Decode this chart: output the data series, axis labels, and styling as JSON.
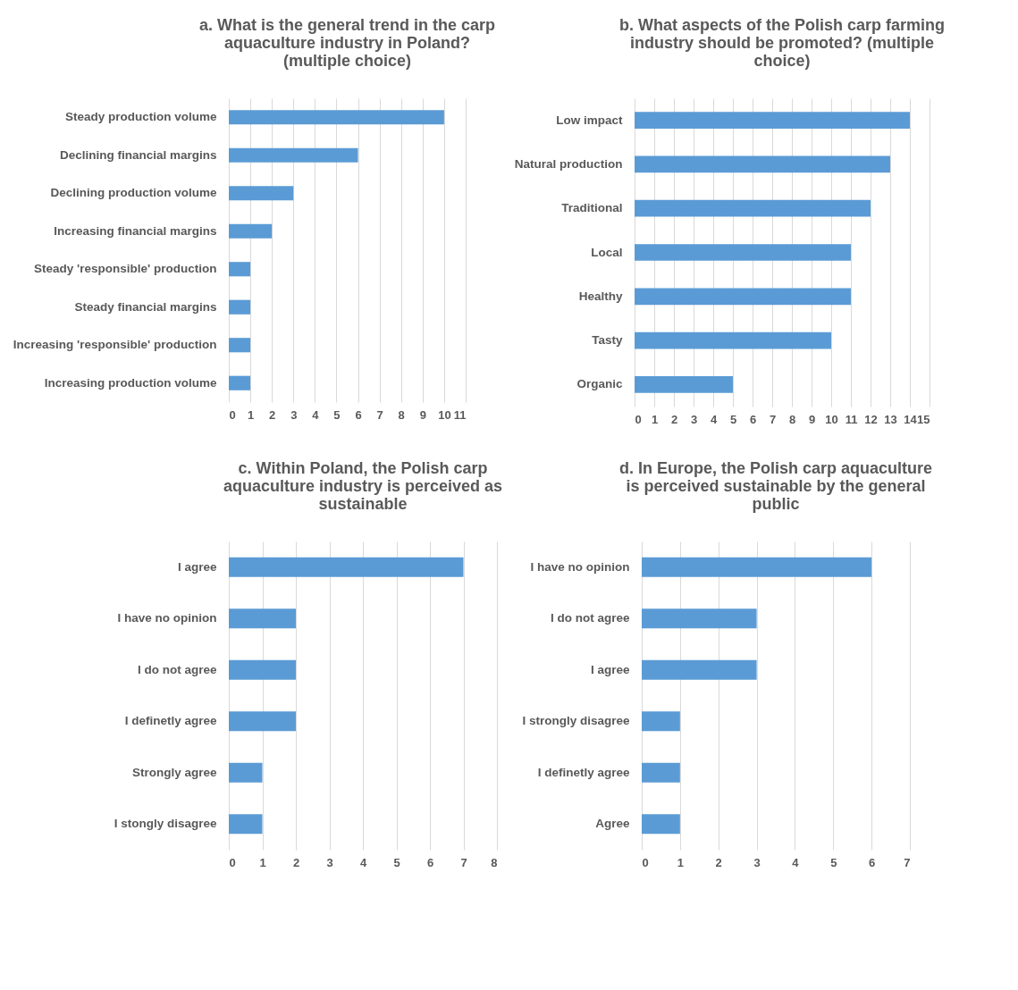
{
  "chart_data": [
    {
      "type": "bar",
      "orientation": "horizontal",
      "title": "a. What is the general trend in the carp aquaculture industry in Poland? (multiple choice)",
      "categories": [
        "Steady production volume",
        "Declining financial margins",
        "Declining production volume",
        "Increasing financial margins",
        "Steady 'responsible' production",
        "Steady financial margins",
        "Increasing 'responsible' production",
        "Increasing production volume"
      ],
      "values": [
        10,
        6,
        3,
        2,
        1,
        1,
        1,
        1
      ],
      "color": "#5b9bd5",
      "xlim": [
        0,
        11
      ],
      "xticks": [
        0,
        1,
        2,
        3,
        4,
        5,
        6,
        7,
        8,
        9,
        10,
        11
      ],
      "grid": "x"
    },
    {
      "type": "bar",
      "orientation": "horizontal",
      "title": "b. What aspects of the Polish carp farming industry should be promoted? (multiple choice)",
      "categories": [
        "Low impact",
        "Natural production",
        "Traditional",
        "Local",
        "Healthy",
        "Tasty",
        "Organic"
      ],
      "values": [
        14,
        13,
        12,
        11,
        11,
        10,
        5
      ],
      "color": "#5b9bd5",
      "xlim": [
        0,
        15
      ],
      "xticks": [
        0,
        1,
        2,
        3,
        4,
        5,
        6,
        7,
        8,
        9,
        10,
        11,
        12,
        13,
        14,
        15
      ],
      "grid": "x"
    },
    {
      "type": "bar",
      "orientation": "horizontal",
      "title": "c. Within Poland, the Polish carp aquaculture industry is perceived as sustainable",
      "categories": [
        "I agree",
        "I have no opinion",
        "I do not agree",
        "I definetly agree",
        "Strongly agree",
        "I stongly disagree"
      ],
      "values": [
        7,
        2,
        2,
        2,
        1,
        1
      ],
      "color": "#5b9bd5",
      "xlim": [
        0,
        8
      ],
      "xticks": [
        0,
        1,
        2,
        3,
        4,
        5,
        6,
        7,
        8
      ],
      "grid": "x"
    },
    {
      "type": "bar",
      "orientation": "horizontal",
      "title": "d. In Europe, the Polish carp aquaculture is perceived sustainable by the general public",
      "categories": [
        "I have no opinion",
        "I do not agree",
        "I agree",
        "I strongly disagree",
        "I definetly agree",
        "Agree"
      ],
      "values": [
        6,
        3,
        3,
        1,
        1,
        1
      ],
      "color": "#5b9bd5",
      "xlim": [
        0,
        7
      ],
      "xticks": [
        0,
        1,
        2,
        3,
        4,
        5,
        6,
        7
      ],
      "grid": "x"
    }
  ]
}
